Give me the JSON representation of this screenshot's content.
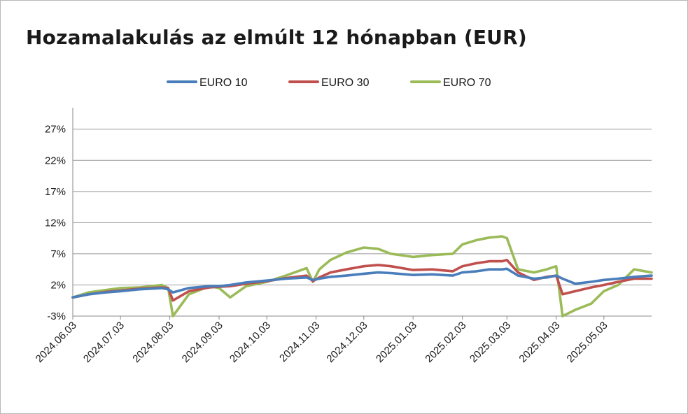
{
  "chart_data": {
    "type": "line",
    "title": "Hozamalakulás az elmúlt 12 hónapban (EUR)",
    "xlabel": "",
    "ylabel": "",
    "x_ticks": [
      "2024.06.03",
      "2024.07.03",
      "2024.08.03",
      "2024.09.03",
      "2024.10.03",
      "2024.11.03",
      "2024.12.03",
      "2025.01.03",
      "2025.02.03",
      "2025.03.03",
      "2025.04.03",
      "2025.05.03"
    ],
    "y_ticks": [
      "-3%",
      "2%",
      "7%",
      "12%",
      "17%",
      "22%",
      "27%"
    ],
    "ylim": [
      -3,
      30
    ],
    "grid": "horizontal",
    "legend_position": "top",
    "x": [
      "2024.06.03",
      "2024.06.13",
      "2024.06.24",
      "2024.07.03",
      "2024.07.15",
      "2024.07.29",
      "2024.08.02",
      "2024.08.05",
      "2024.08.15",
      "2024.08.28",
      "2024.09.03",
      "2024.09.10",
      "2024.09.20",
      "2024.10.03",
      "2024.10.15",
      "2024.10.28",
      "2024.11.01",
      "2024.11.05",
      "2024.11.12",
      "2024.11.22",
      "2024.12.03",
      "2024.12.12",
      "2024.12.20",
      "2025.01.03",
      "2025.01.15",
      "2025.01.28",
      "2025.02.03",
      "2025.02.12",
      "2025.02.20",
      "2025.02.28",
      "2025.03.03",
      "2025.03.10",
      "2025.03.20",
      "2025.03.28",
      "2025.04.03",
      "2025.04.07",
      "2025.04.15",
      "2025.04.25",
      "2025.05.03",
      "2025.05.12",
      "2025.05.22",
      "2025.06.02"
    ],
    "series": [
      {
        "name": "EURO 10",
        "color": "#4a7ebb",
        "values": [
          0.0,
          0.5,
          0.8,
          1.0,
          1.3,
          1.5,
          1.3,
          0.8,
          1.5,
          1.8,
          1.8,
          2.0,
          2.4,
          2.7,
          3.0,
          3.2,
          2.8,
          3.0,
          3.3,
          3.5,
          3.8,
          4.0,
          3.9,
          3.6,
          3.7,
          3.5,
          4.0,
          4.2,
          4.5,
          4.5,
          4.6,
          3.5,
          3.0,
          3.2,
          3.5,
          3.0,
          2.2,
          2.5,
          2.8,
          3.0,
          3.3,
          3.5
        ]
      },
      {
        "name": "EURO 30",
        "color": "#c0504d",
        "values": [
          0.0,
          0.5,
          0.9,
          1.1,
          1.4,
          1.6,
          1.5,
          -0.5,
          1.0,
          1.6,
          1.7,
          1.8,
          2.2,
          2.6,
          3.1,
          3.5,
          2.6,
          3.2,
          4.0,
          4.5,
          5.0,
          5.2,
          5.0,
          4.4,
          4.5,
          4.2,
          5.0,
          5.5,
          5.8,
          5.8,
          6.0,
          4.0,
          2.8,
          3.3,
          3.5,
          0.5,
          1.0,
          1.6,
          2.0,
          2.5,
          3.0,
          3.0
        ]
      },
      {
        "name": "EURO 70",
        "color": "#9bbb59",
        "values": [
          0.0,
          0.8,
          1.2,
          1.5,
          1.6,
          2.0,
          1.5,
          -3.0,
          0.5,
          1.8,
          1.5,
          0.0,
          1.8,
          2.5,
          3.5,
          4.7,
          2.5,
          4.5,
          6.0,
          7.2,
          8.0,
          7.8,
          7.0,
          6.5,
          6.8,
          7.0,
          8.5,
          9.2,
          9.6,
          9.8,
          9.5,
          4.5,
          4.0,
          4.5,
          5.0,
          -3.0,
          -2.0,
          -1.0,
          1.0,
          2.0,
          4.5,
          4.0
        ]
      }
    ]
  }
}
